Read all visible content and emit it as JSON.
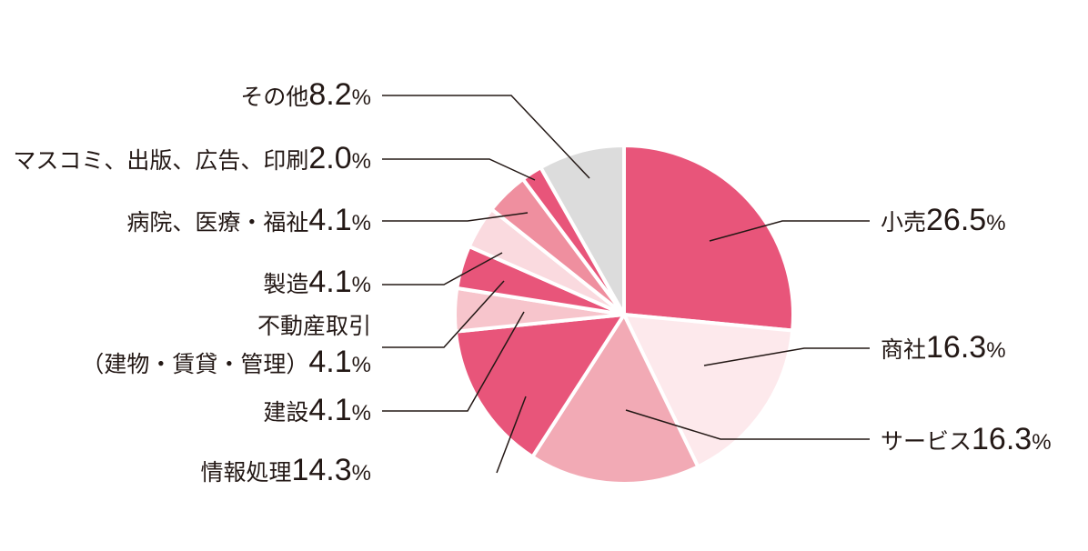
{
  "chart_data": {
    "type": "pie",
    "start": "12 o'clock",
    "direction": "clockwise",
    "legend": "none",
    "slices": [
      {
        "label": "小売",
        "value": 26.5,
        "display": "26.5",
        "unit": "%",
        "color": "#e8557a"
      },
      {
        "label": "商社",
        "value": 16.3,
        "display": "16.3",
        "unit": "%",
        "color": "#fde9ec"
      },
      {
        "label": "サービス",
        "value": 16.3,
        "display": "16.3",
        "unit": "%",
        "color": "#f2aab5"
      },
      {
        "label": "情報処理",
        "value": 14.3,
        "display": "14.3",
        "unit": "%",
        "color": "#e8557a"
      },
      {
        "label": "建設",
        "value": 4.1,
        "display": "4.1",
        "unit": "%",
        "color": "#f7c5cc"
      },
      {
        "label": "不動産取引（建物・賃貸・管理）",
        "label_lines": [
          "不動産取引",
          "（建物・賃貸・管理）"
        ],
        "value": 4.1,
        "display": "4.1",
        "unit": "%",
        "color": "#e8557a"
      },
      {
        "label": "製造",
        "value": 4.1,
        "display": "4.1",
        "unit": "%",
        "color": "#fadadf"
      },
      {
        "label": "病院、医療・福祉",
        "value": 4.1,
        "display": "4.1",
        "unit": "%",
        "color": "#ef8f9f"
      },
      {
        "label": "マスコミ、出版、広告、印刷",
        "value": 2.0,
        "display": "2.0",
        "unit": "%",
        "color": "#e8557a"
      },
      {
        "label": "その他",
        "value": 8.2,
        "display": "8.2",
        "unit": "%",
        "color": "#dcdcdc"
      }
    ]
  }
}
